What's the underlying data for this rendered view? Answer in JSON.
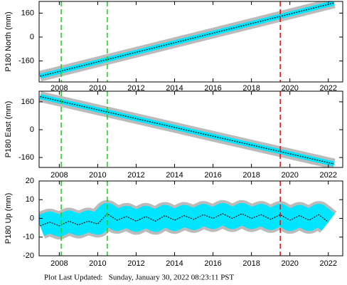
{
  "chart_data": [
    {
      "type": "line",
      "ylabel": "P180 North (mm)",
      "xlim": [
        2006.95,
        2022.75
      ],
      "xticks": [
        2008,
        2010,
        2012,
        2014,
        2016,
        2018,
        2020,
        2022
      ],
      "ylim": [
        -300,
        238
      ],
      "yticks": [
        160,
        0,
        -160
      ],
      "x": [
        2007.0,
        2022.3
      ],
      "series": [
        {
          "color": "#000000",
          "band_color": "#00e5ff",
          "values": [
            -262,
            228
          ]
        }
      ],
      "vlines": [
        {
          "x": 2008.1,
          "color": "#22cc22"
        },
        {
          "x": 2010.5,
          "color": "#22cc22"
        },
        {
          "x": 2019.5,
          "color": "#dd1111"
        }
      ]
    },
    {
      "type": "line",
      "ylabel": "P180 East (mm)",
      "xlim": [
        2006.95,
        2022.75
      ],
      "xticks": [
        2008,
        2010,
        2012,
        2014,
        2016,
        2018,
        2020,
        2022
      ],
      "ylim": [
        -217,
        221
      ],
      "yticks": [
        160,
        0,
        -160
      ],
      "x": [
        2007.0,
        2022.3
      ],
      "series": [
        {
          "color": "#000000",
          "band_color": "#00e5ff",
          "values": [
            190,
            -197
          ]
        }
      ],
      "vlines": [
        {
          "x": 2008.1,
          "color": "#22cc22"
        },
        {
          "x": 2010.5,
          "color": "#22cc22"
        },
        {
          "x": 2019.5,
          "color": "#dd1111"
        }
      ]
    },
    {
      "type": "line",
      "ylabel": "P180 Up (mm)",
      "xlim": [
        2006.95,
        2022.75
      ],
      "xticks": [
        2008,
        2010,
        2012,
        2014,
        2016,
        2018,
        2020,
        2022
      ],
      "ylim": [
        -20,
        20
      ],
      "yticks": [
        20,
        10,
        0,
        -10,
        -20
      ],
      "x": [
        2007.0,
        2007.5,
        2008.0,
        2008.5,
        2009.0,
        2009.5,
        2010.0,
        2010.5,
        2011.0,
        2011.5,
        2012.0,
        2012.5,
        2013.0,
        2013.5,
        2014.0,
        2014.5,
        2015.0,
        2015.5,
        2016.0,
        2016.5,
        2017.0,
        2017.5,
        2018.0,
        2018.5,
        2019.0,
        2019.5,
        2020.0,
        2020.5,
        2021.0,
        2021.5,
        2022.0
      ],
      "series": [
        {
          "color": "#000000",
          "band_color": "#00e5ff",
          "values": [
            -4,
            -2,
            -4,
            -1.5,
            -3.5,
            -1.5,
            -3,
            2.5,
            -1,
            1,
            -1.5,
            1,
            -1.5,
            1.5,
            -1,
            1.5,
            -0.5,
            2,
            0,
            2.5,
            0,
            2.5,
            0,
            2,
            -0.5,
            2,
            -1,
            1.5,
            -1,
            2,
            -2
          ]
        }
      ],
      "vlines": [
        {
          "x": 2008.1,
          "color": "#22cc22"
        },
        {
          "x": 2010.5,
          "color": "#22cc22"
        },
        {
          "x": 2019.5,
          "color": "#dd1111"
        }
      ]
    }
  ],
  "footer": "Plot Last Updated:   Sunday, January 30, 2022 08:23:11 PST"
}
